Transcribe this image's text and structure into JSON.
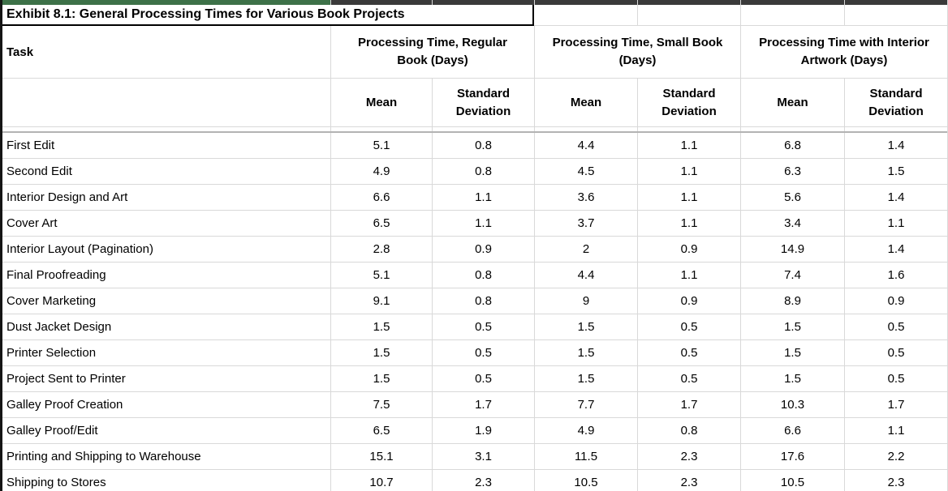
{
  "colors": {
    "top_strip_green": "#3d7148",
    "top_strip_dark": "#3a3a3a",
    "gridline": "#d9d9d9",
    "table_border": "#000000"
  },
  "table": {
    "title": "Exhibit 8.1: General Processing Times for Various Book Projects",
    "task_header": "Task",
    "group_headers": [
      "Processing Time, Regular Book (Days)",
      "Processing Time, Small Book (Days)",
      "Processing Time with Interior Artwork (Days)"
    ],
    "sub_headers": [
      "Mean",
      "Standard Deviation"
    ],
    "rows": [
      {
        "task": "First Edit",
        "values": [
          "5.1",
          "0.8",
          "4.4",
          "1.1",
          "6.8",
          "1.4"
        ]
      },
      {
        "task": "Second Edit",
        "values": [
          "4.9",
          "0.8",
          "4.5",
          "1.1",
          "6.3",
          "1.5"
        ]
      },
      {
        "task": "Interior Design and Art",
        "values": [
          "6.6",
          "1.1",
          "3.6",
          "1.1",
          "5.6",
          "1.4"
        ]
      },
      {
        "task": "Cover Art",
        "values": [
          "6.5",
          "1.1",
          "3.7",
          "1.1",
          "3.4",
          "1.1"
        ]
      },
      {
        "task": "Interior Layout (Pagination)",
        "values": [
          "2.8",
          "0.9",
          "2",
          "0.9",
          "14.9",
          "1.4"
        ]
      },
      {
        "task": "Final Proofreading",
        "values": [
          "5.1",
          "0.8",
          "4.4",
          "1.1",
          "7.4",
          "1.6"
        ]
      },
      {
        "task": "Cover Marketing",
        "values": [
          "9.1",
          "0.8",
          "9",
          "0.9",
          "8.9",
          "0.9"
        ]
      },
      {
        "task": "Dust Jacket Design",
        "values": [
          "1.5",
          "0.5",
          "1.5",
          "0.5",
          "1.5",
          "0.5"
        ]
      },
      {
        "task": "Printer Selection",
        "values": [
          "1.5",
          "0.5",
          "1.5",
          "0.5",
          "1.5",
          "0.5"
        ]
      },
      {
        "task": "Project Sent to Printer",
        "values": [
          "1.5",
          "0.5",
          "1.5",
          "0.5",
          "1.5",
          "0.5"
        ]
      },
      {
        "task": "Galley Proof Creation",
        "values": [
          "7.5",
          "1.7",
          "7.7",
          "1.7",
          "10.3",
          "1.7"
        ]
      },
      {
        "task": "Galley Proof/Edit",
        "values": [
          "6.5",
          "1.9",
          "4.9",
          "0.8",
          "6.6",
          "1.1"
        ]
      },
      {
        "task": "Printing and Shipping to Warehouse",
        "values": [
          "15.1",
          "3.1",
          "11.5",
          "2.3",
          "17.6",
          "2.2"
        ]
      },
      {
        "task": "Shipping to Stores",
        "values": [
          "10.7",
          "2.3",
          "10.5",
          "2.3",
          "10.5",
          "2.3"
        ]
      }
    ]
  }
}
